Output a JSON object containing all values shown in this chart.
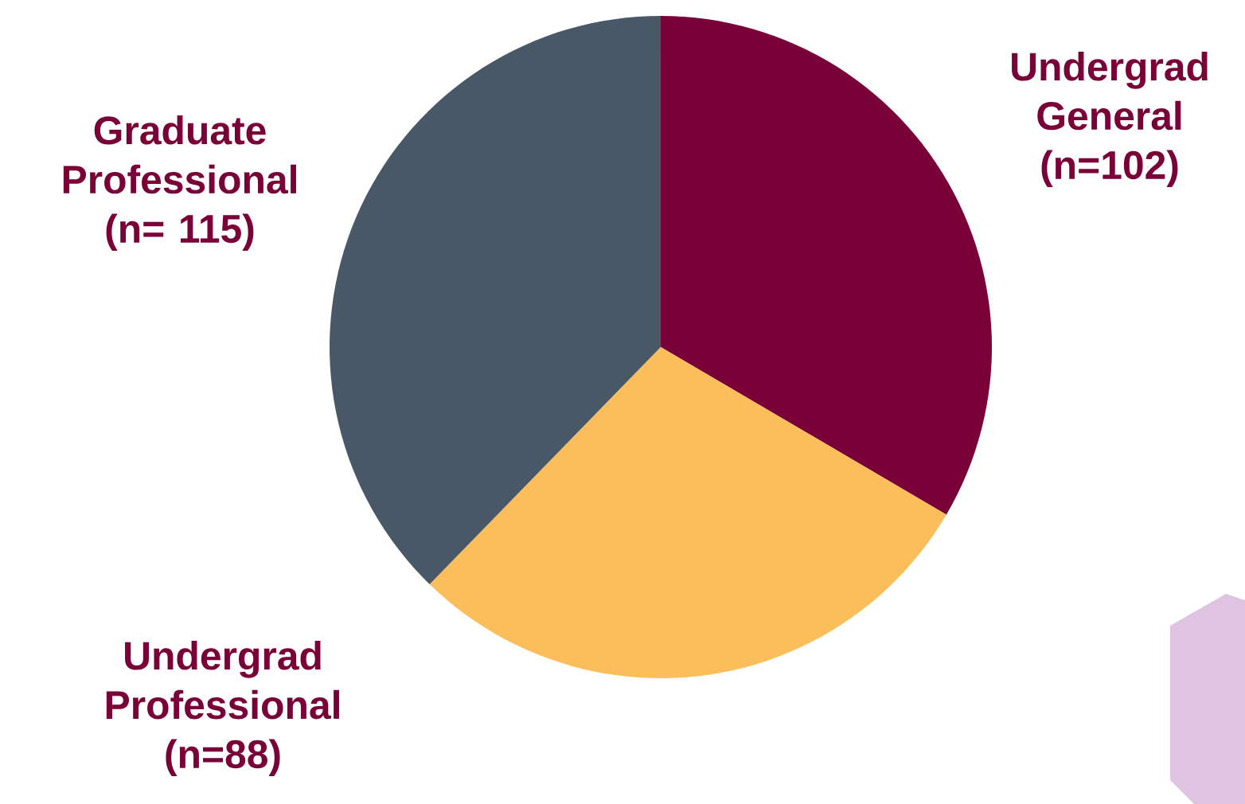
{
  "chart_data": {
    "type": "pie",
    "categories": [
      "Undergrad General",
      "Undergrad Professional",
      "Graduate Professional"
    ],
    "values": [
      102,
      88,
      115
    ],
    "value_labels": [
      "(n=102)",
      "(n=88)",
      "(n= 115)"
    ],
    "colors": [
      "#7a0038",
      "#fbbe5a",
      "#495866"
    ]
  }
}
